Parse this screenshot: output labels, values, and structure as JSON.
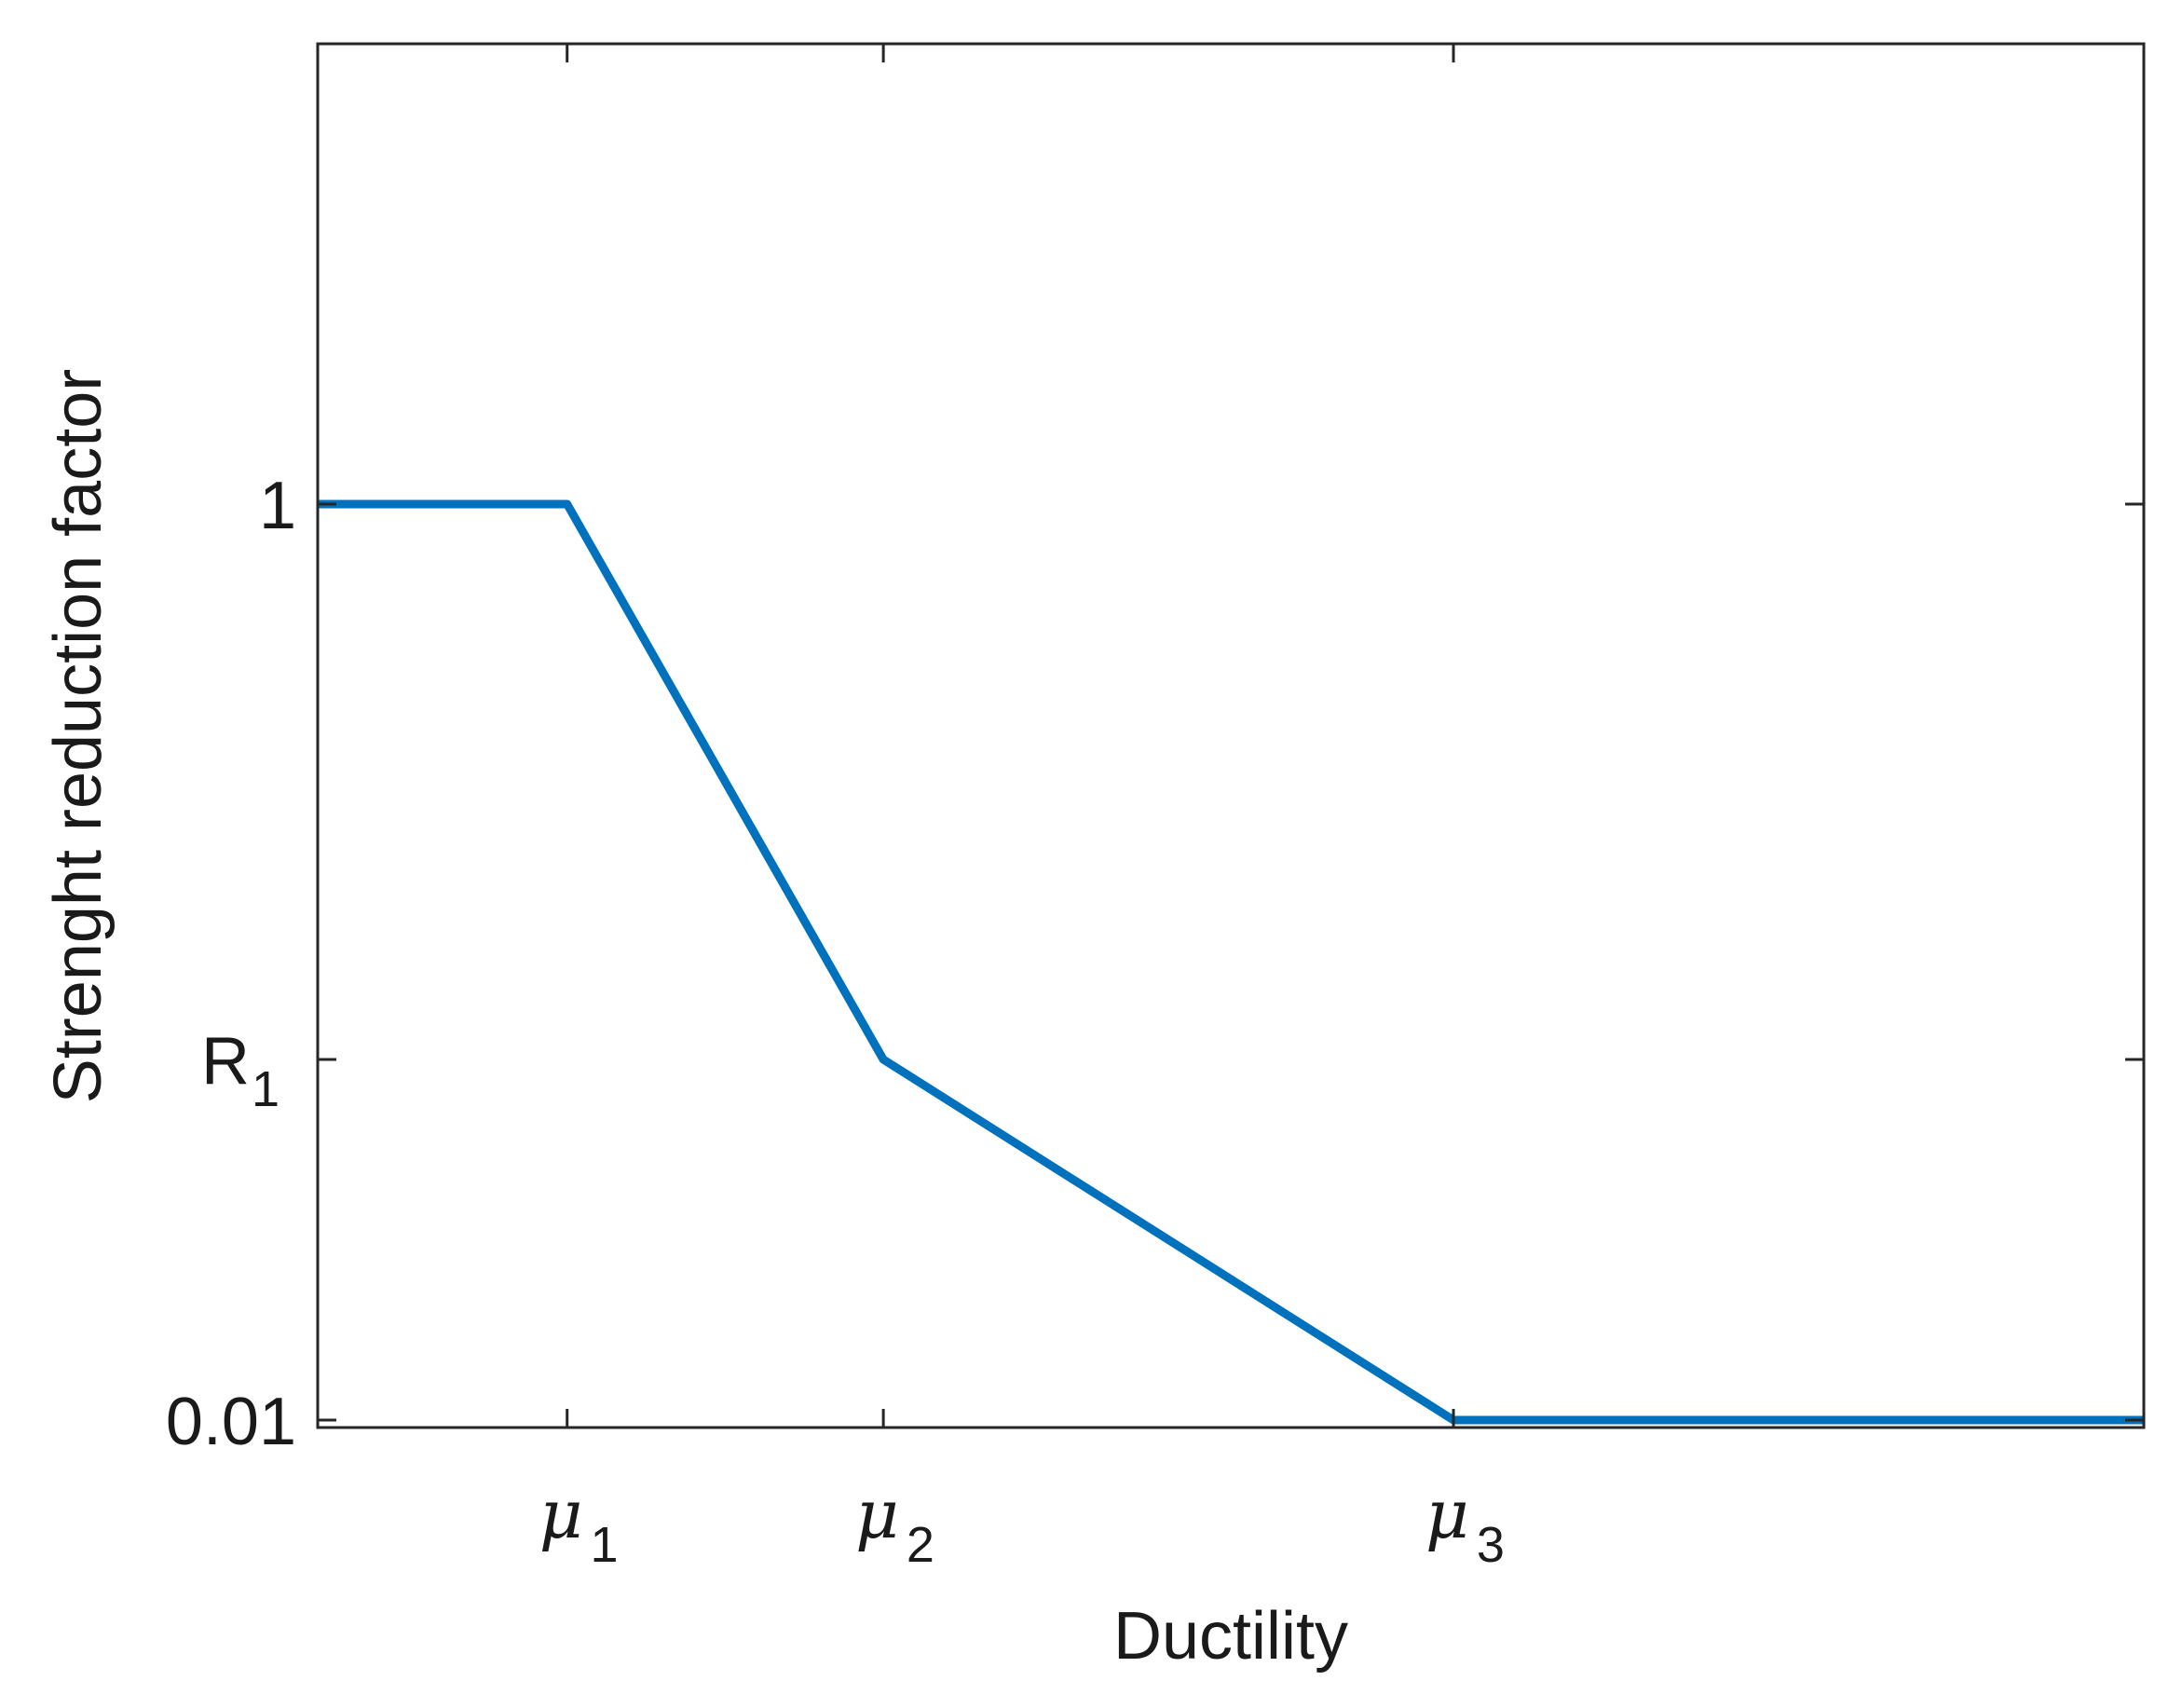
{
  "chart_data": {
    "type": "line",
    "xlabel": "Ductility",
    "ylabel": "Strenght reduction factor",
    "grid": false,
    "legend": "none",
    "line_color": "#0072BD",
    "x_ticks": [
      {
        "value": 0.56,
        "base": "μ",
        "sub": "1"
      },
      {
        "value": 1.27,
        "base": "μ",
        "sub": "2"
      },
      {
        "value": 2.55,
        "base": "μ",
        "sub": "3"
      }
    ],
    "y_ticks": [
      {
        "value": 0.01,
        "base": "0.01",
        "sub": ""
      },
      {
        "value": 0.41,
        "base": "R",
        "sub": "1"
      },
      {
        "value": 1.0,
        "base": "1",
        "sub": ""
      }
    ],
    "xlim": [
      0,
      4.1
    ],
    "ylim": [
      0,
      1.5
    ],
    "series": [
      {
        "x": [
          0,
          0.56,
          1.27,
          2.55,
          4.1
        ],
        "y": [
          1.0,
          1.0,
          0.41,
          0.01,
          0.01
        ]
      }
    ]
  }
}
